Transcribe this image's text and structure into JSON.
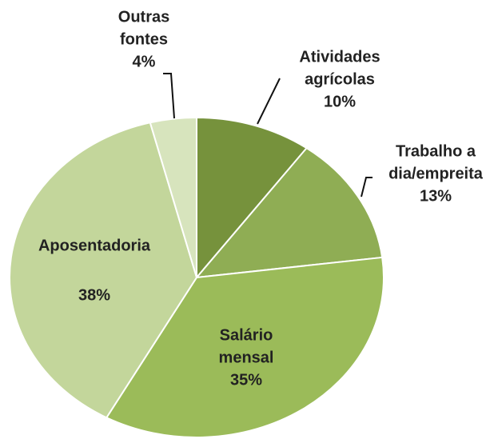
{
  "chart_data": {
    "type": "pie",
    "categories": [
      [
        "Atividades",
        "agrícolas"
      ],
      [
        "Trabalho a",
        "dia/empreita"
      ],
      [
        "Salário",
        "mensal"
      ],
      [
        "Aposentadoria"
      ],
      [
        "Outras",
        "fontes"
      ]
    ],
    "values": [
      10,
      13,
      35,
      38,
      4
    ],
    "value_labels": [
      "10%",
      "13%",
      "35%",
      "38%",
      "4%"
    ],
    "colors": [
      "#76923c",
      "#8fad54",
      "#9bbb59",
      "#c3d69b",
      "#d7e4bd"
    ]
  }
}
